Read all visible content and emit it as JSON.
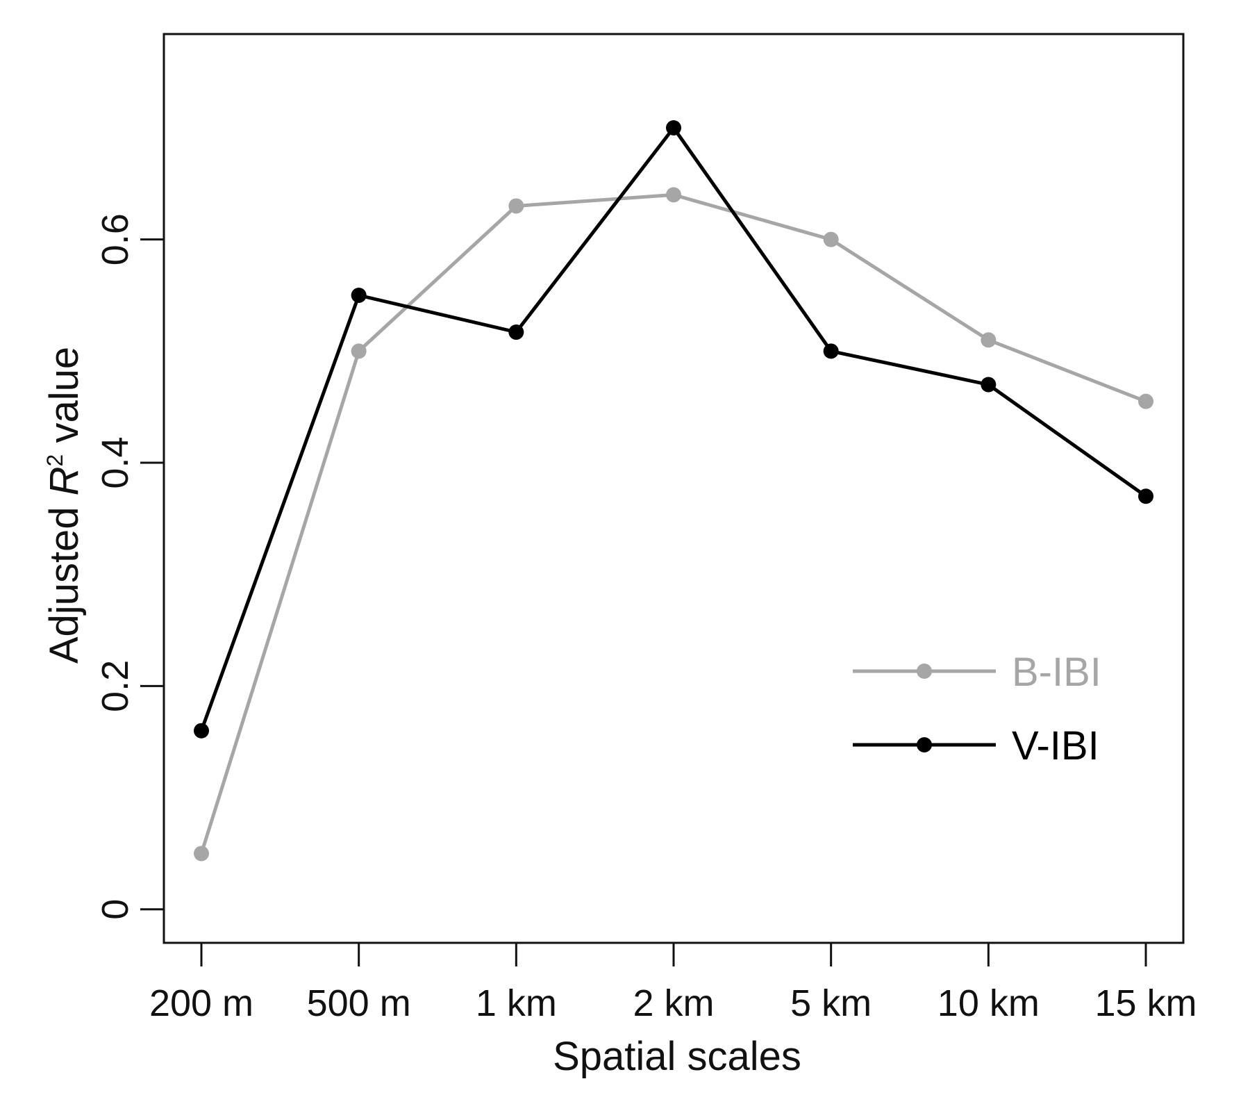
{
  "chart_data": {
    "type": "line",
    "categories": [
      "200 m",
      "500 m",
      "1 km",
      "2 km",
      "5 km",
      "10 km",
      "15 km"
    ],
    "series": [
      {
        "name": "B-IBI",
        "color": "#a6a6a6",
        "values": [
          0.05,
          0.5,
          0.63,
          0.64,
          0.6,
          0.51,
          0.455
        ]
      },
      {
        "name": "V-IBI",
        "color": "#000000",
        "values": [
          0.16,
          0.55,
          0.517,
          0.7,
          0.5,
          0.47,
          0.37
        ]
      }
    ],
    "xlabel": "Spatial scales",
    "ylabel": {
      "prefix": "Adjusted ",
      "symbol": "R",
      "superscript": "2",
      "suffix": " value"
    },
    "yticks": [
      0,
      0.2,
      0.4,
      0.6
    ],
    "ytick_labels": [
      "0",
      "0.2",
      "0.4",
      "0.6"
    ],
    "ylim": [
      -0.03,
      0.784
    ],
    "grid": false,
    "legend_position": "middle-right"
  }
}
